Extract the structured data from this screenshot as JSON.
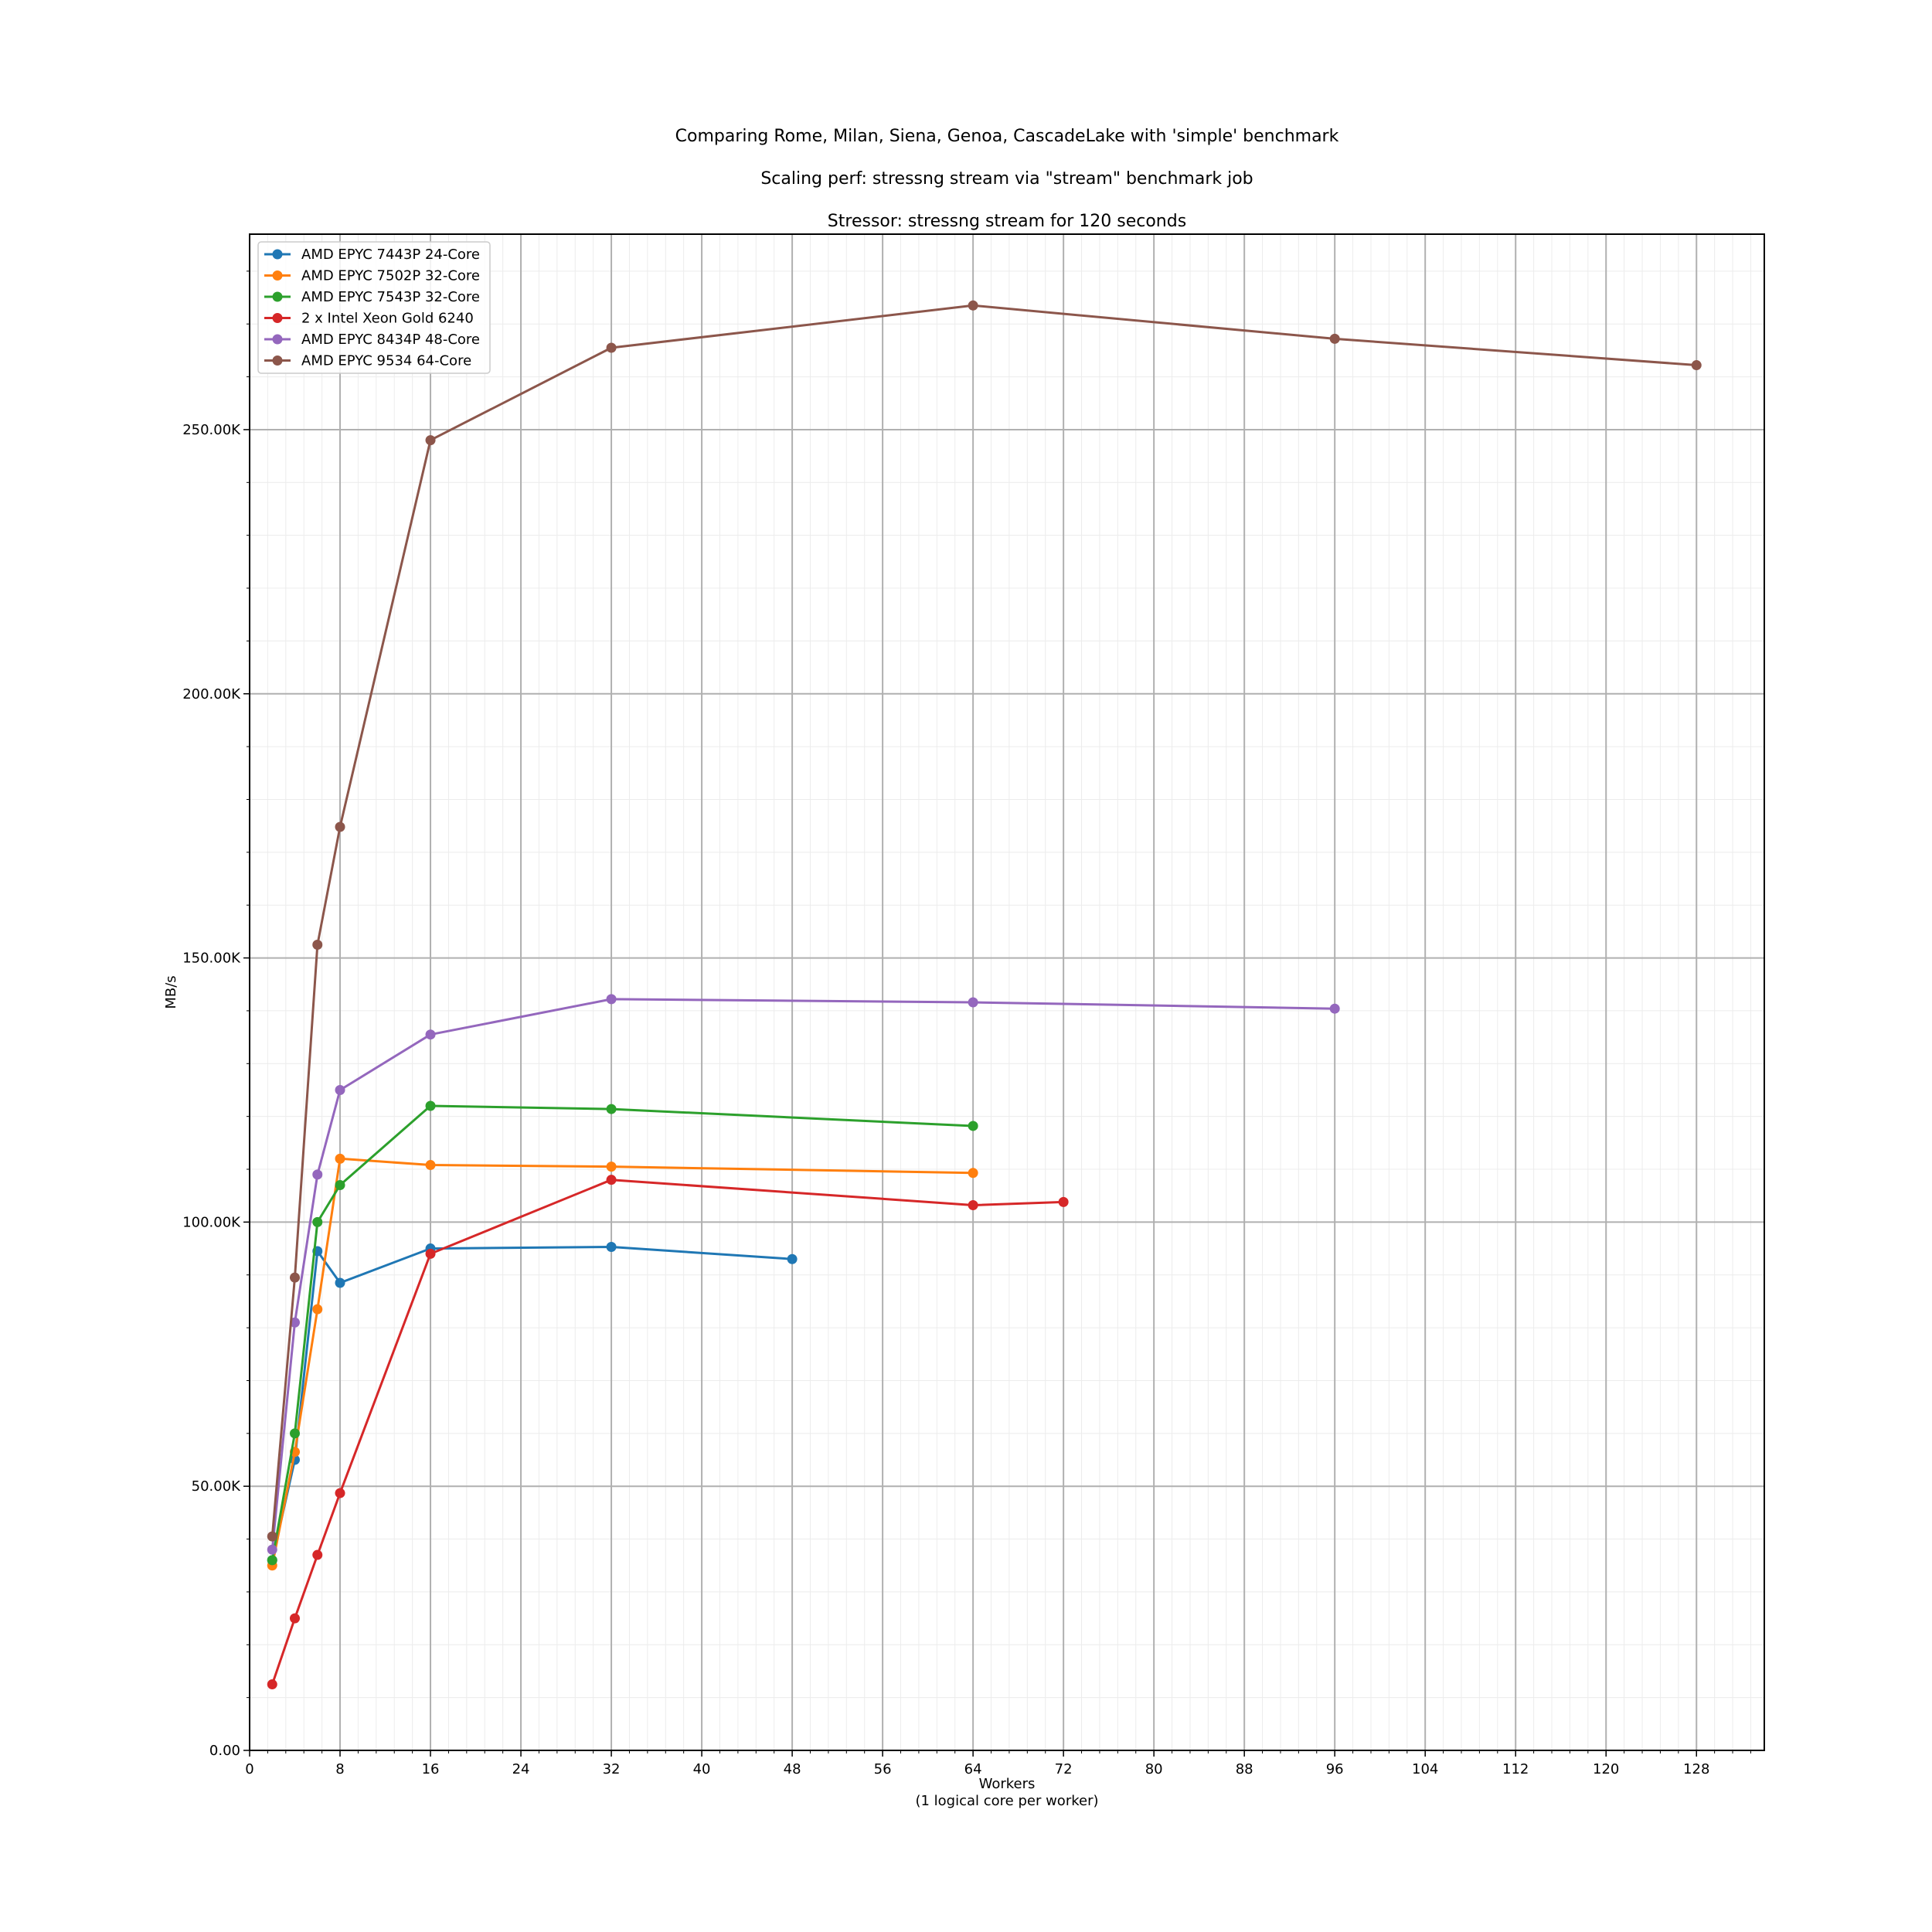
{
  "chart_data": {
    "type": "line",
    "titles": [
      "Comparing Rome, Milan, Siena, Genoa, CascadeLake with 'simple' benchmark",
      "Scaling perf: stressng stream  via \"stream\" benchmark job",
      "Stressor: stressng stream  for 120 seconds"
    ],
    "xlabel": "Workers",
    "xlabel_sub": "(1 logical core per worker)",
    "ylabel": "MB/s",
    "xlim": [
      0,
      134
    ],
    "ylim": [
      0,
      287000
    ],
    "x_ticks": [
      0,
      8,
      16,
      24,
      32,
      40,
      48,
      56,
      64,
      72,
      80,
      88,
      96,
      104,
      112,
      120,
      128
    ],
    "y_ticks": [
      {
        "value": 0,
        "label": "0.00"
      },
      {
        "value": 50000,
        "label": "50.00K"
      },
      {
        "value": 100000,
        "label": "100.00K"
      },
      {
        "value": 150000,
        "label": "150.00K"
      },
      {
        "value": 200000,
        "label": "200.00K"
      },
      {
        "value": 250000,
        "label": "250.00K"
      }
    ],
    "grid": true,
    "minor_grid": true,
    "legend_position": "top-left",
    "series": [
      {
        "name": "AMD EPYC 7443P 24-Core",
        "color": "#1f77b4",
        "x": [
          2,
          4,
          6,
          8,
          16,
          32,
          48
        ],
        "y": [
          36000,
          55000,
          94500,
          88500,
          95000,
          95300,
          93000
        ]
      },
      {
        "name": "AMD EPYC 7502P 32-Core",
        "color": "#ff7f0e",
        "x": [
          2,
          4,
          6,
          8,
          16,
          32,
          64
        ],
        "y": [
          35000,
          56500,
          83500,
          112000,
          110800,
          110500,
          109300
        ]
      },
      {
        "name": "AMD EPYC 7543P 32-Core",
        "color": "#2ca02c",
        "x": [
          2,
          4,
          6,
          8,
          16,
          32,
          64
        ],
        "y": [
          36000,
          60000,
          100000,
          107000,
          122000,
          121400,
          118200
        ]
      },
      {
        "name": "2 x Intel Xeon Gold 6240",
        "color": "#d62728",
        "x": [
          2,
          4,
          6,
          8,
          16,
          32,
          64,
          72
        ],
        "y": [
          12500,
          25000,
          37000,
          48700,
          94000,
          108000,
          103200,
          103800
        ]
      },
      {
        "name": "AMD EPYC 8434P 48-Core",
        "color": "#9467bd",
        "x": [
          2,
          4,
          6,
          8,
          16,
          32,
          64,
          96
        ],
        "y": [
          38000,
          81000,
          109000,
          125000,
          135500,
          142200,
          141600,
          140400
        ]
      },
      {
        "name": "AMD EPYC 9534 64-Core",
        "color": "#8c564b",
        "x": [
          2,
          4,
          6,
          8,
          16,
          32,
          64,
          96,
          128
        ],
        "y": [
          40500,
          89500,
          152500,
          174800,
          248000,
          265500,
          273500,
          267200,
          262200
        ]
      }
    ]
  }
}
